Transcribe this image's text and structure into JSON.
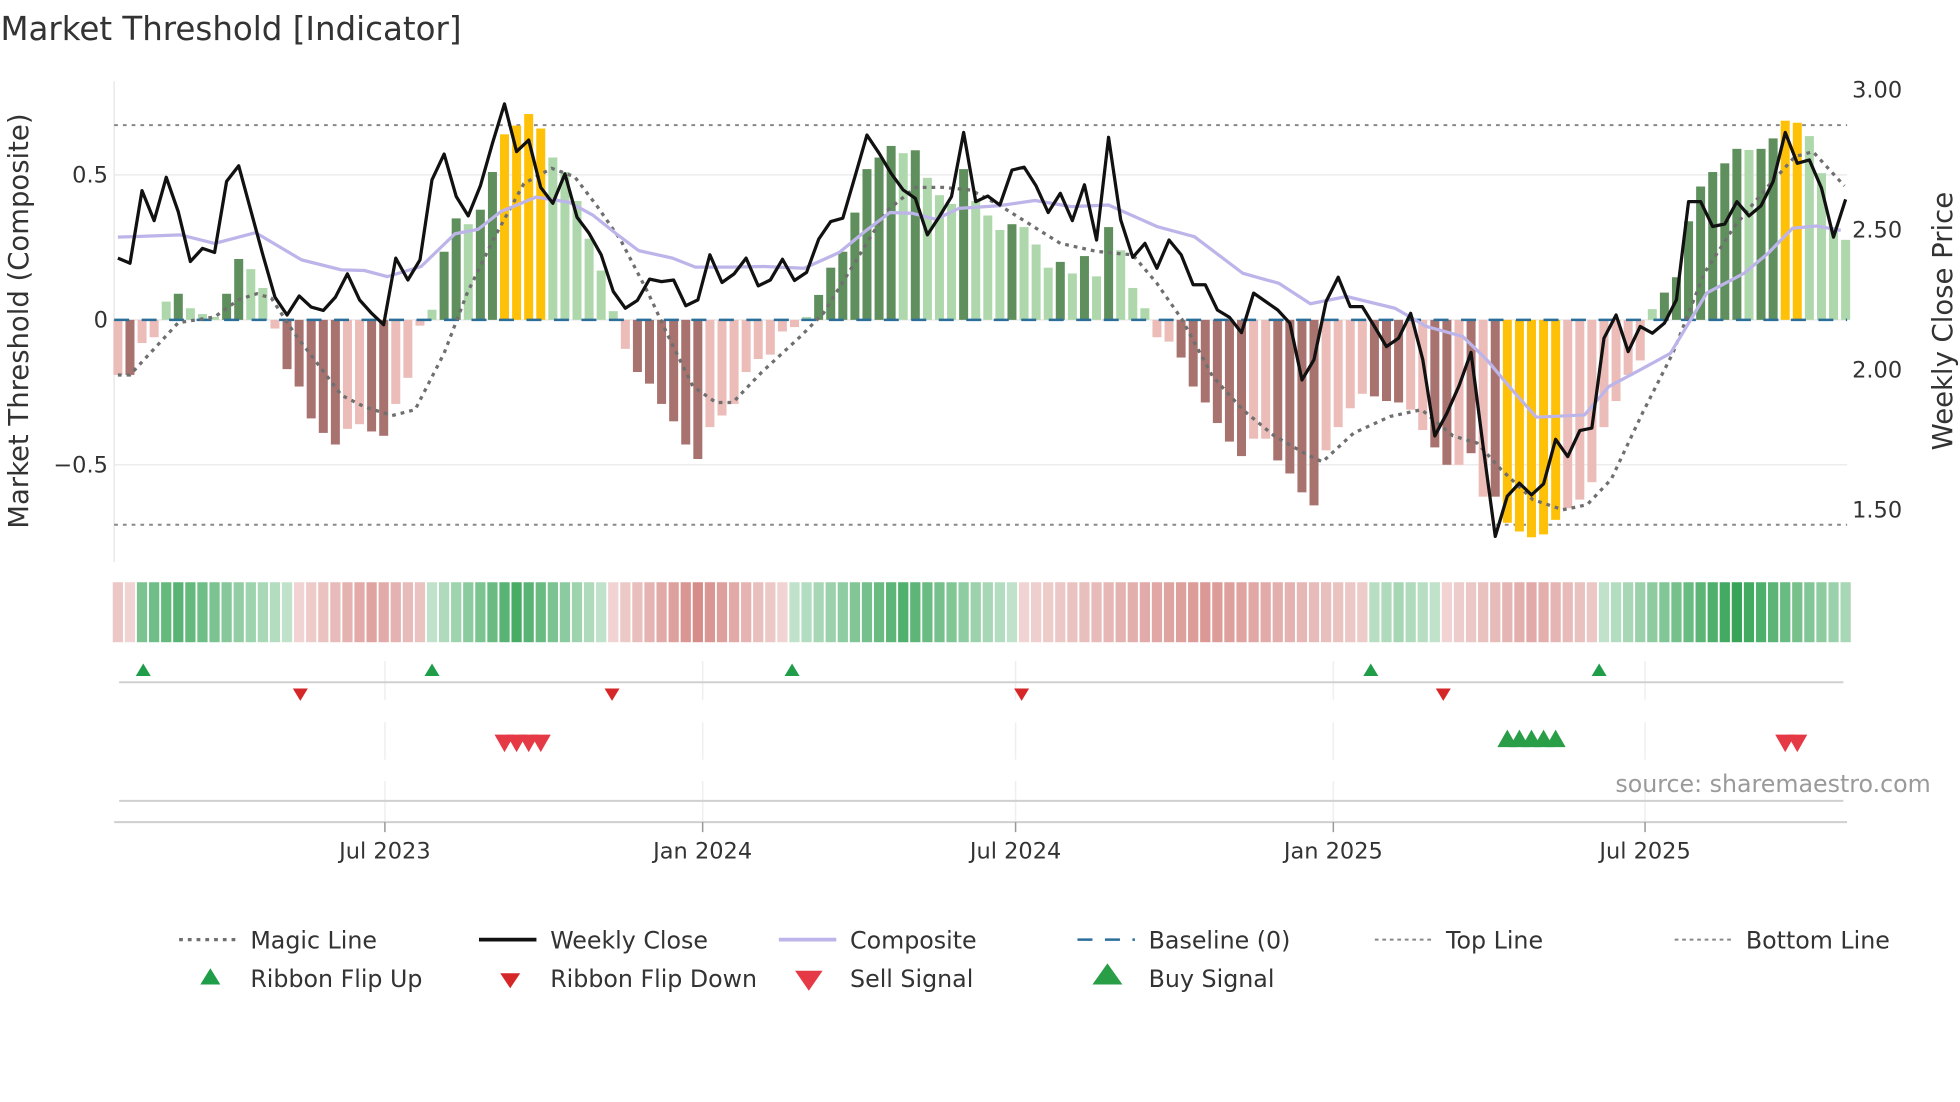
{
  "title": "Market Threshold [Indicator]",
  "source": "source: sharemaestro.com",
  "chart_data": {
    "type": "bar",
    "title": "Market Threshold [Indicator]",
    "xlabel": "",
    "ylabel_left": "Market Threshold (Composite)",
    "ylabel_right": "Weekly Close Price",
    "x_unit": "week index (weekly, ~Feb 2023 to Oct 2025)",
    "ylim_left": [
      -0.82,
      0.82
    ],
    "ylim_right": [
      1.3,
      3.06
    ],
    "yticks_left": [
      {
        "v": 0.5,
        "label": "0.5"
      },
      {
        "v": 0,
        "label": "0"
      },
      {
        "v": -0.5,
        "label": "−0.5"
      }
    ],
    "yticks_right": [
      {
        "v": 3.0,
        "label": "3.00"
      },
      {
        "v": 2.5,
        "label": "2.50"
      },
      {
        "v": 2.0,
        "label": "2.00"
      },
      {
        "v": 1.5,
        "label": "1.50"
      }
    ],
    "xticks": [
      {
        "w": 22.1,
        "label": "Jul 2023"
      },
      {
        "w": 48.4,
        "label": "Jan 2024"
      },
      {
        "w": 74.3,
        "label": "Jul 2024"
      },
      {
        "w": 100.6,
        "label": "Jan 2025"
      },
      {
        "w": 126.4,
        "label": "Jul 2025"
      }
    ],
    "top_line": 0.672,
    "bottom_line": -0.707,
    "baseline": 0,
    "composite_bars": [
      -0.19,
      -0.19,
      -0.08,
      -0.06,
      0.063,
      0.09,
      0.04,
      0.02,
      0.01,
      0.09,
      0.21,
      0.175,
      0.11,
      -0.03,
      -0.17,
      -0.23,
      -0.34,
      -0.39,
      -0.43,
      -0.376,
      -0.36,
      -0.385,
      -0.4,
      -0.29,
      -0.2,
      -0.02,
      0.035,
      0.235,
      0.35,
      0.33,
      0.38,
      0.51,
      0.64,
      0.67,
      0.71,
      0.66,
      0.56,
      0.51,
      0.41,
      0.28,
      0.17,
      0.03,
      -0.1,
      -0.18,
      -0.22,
      -0.29,
      -0.35,
      -0.43,
      -0.48,
      -0.37,
      -0.33,
      -0.29,
      -0.18,
      -0.135,
      -0.12,
      -0.04,
      -0.025,
      0.01,
      0.086,
      0.18,
      0.235,
      0.37,
      0.52,
      0.56,
      0.6,
      0.575,
      0.585,
      0.49,
      0.43,
      0.4,
      0.52,
      0.41,
      0.36,
      0.31,
      0.33,
      0.32,
      0.26,
      0.18,
      0.2,
      0.16,
      0.22,
      0.15,
      0.32,
      0.24,
      0.11,
      0.04,
      -0.06,
      -0.075,
      -0.13,
      -0.23,
      -0.285,
      -0.356,
      -0.42,
      -0.47,
      -0.41,
      -0.41,
      -0.485,
      -0.53,
      -0.595,
      -0.64,
      -0.45,
      -0.37,
      -0.305,
      -0.255,
      -0.264,
      -0.28,
      -0.285,
      -0.31,
      -0.38,
      -0.44,
      -0.5,
      -0.5,
      -0.46,
      -0.61,
      -0.61,
      -0.7,
      -0.73,
      -0.75,
      -0.74,
      -0.69,
      -0.65,
      -0.62,
      -0.56,
      -0.37,
      -0.28,
      -0.19,
      -0.14,
      0.037,
      0.094,
      0.147,
      0.34,
      0.46,
      0.51,
      0.54,
      0.59,
      0.586,
      0.59,
      0.626,
      0.687,
      0.68,
      0.634,
      0.506,
      0.32,
      0.276
    ],
    "bar_strong": [
      0,
      1,
      0,
      0,
      0,
      1,
      0,
      0,
      0,
      1,
      1,
      0,
      0,
      0,
      1,
      1,
      1,
      1,
      1,
      0,
      0,
      1,
      1,
      0,
      0,
      0,
      0,
      1,
      1,
      0,
      1,
      1,
      1,
      1,
      1,
      1,
      0,
      0,
      0,
      0,
      0,
      0,
      0,
      1,
      1,
      1,
      1,
      1,
      1,
      0,
      0,
      0,
      0,
      0,
      0,
      0,
      0,
      0,
      1,
      1,
      1,
      1,
      1,
      1,
      1,
      0,
      1,
      0,
      0,
      0,
      1,
      0,
      0,
      0,
      1,
      0,
      0,
      0,
      1,
      0,
      1,
      0,
      1,
      0,
      0,
      0,
      0,
      0,
      1,
      1,
      1,
      1,
      1,
      1,
      0,
      0,
      1,
      1,
      1,
      1,
      0,
      0,
      0,
      0,
      1,
      1,
      1,
      0,
      0,
      1,
      1,
      0,
      1,
      0,
      1,
      1,
      1,
      1,
      1,
      1,
      0,
      0,
      0,
      0,
      0,
      0,
      0,
      0,
      1,
      1,
      1,
      1,
      1,
      1,
      1,
      0,
      1,
      1,
      1,
      1,
      0,
      0,
      0,
      0
    ],
    "weekly_close": [
      2.399,
      2.381,
      2.64,
      2.533,
      2.688,
      2.565,
      2.387,
      2.434,
      2.419,
      2.673,
      2.729,
      2.569,
      2.411,
      2.26,
      2.196,
      2.264,
      2.224,
      2.212,
      2.26,
      2.343,
      2.25,
      2.202,
      2.161,
      2.399,
      2.321,
      2.393,
      2.679,
      2.771,
      2.619,
      2.55,
      2.657,
      2.81,
      2.95,
      2.78,
      2.821,
      2.652,
      2.595,
      2.7,
      2.545,
      2.488,
      2.411,
      2.28,
      2.22,
      2.248,
      2.324,
      2.315,
      2.321,
      2.229,
      2.25,
      2.411,
      2.312,
      2.343,
      2.399,
      2.3,
      2.321,
      2.395,
      2.319,
      2.348,
      2.467,
      2.53,
      2.542,
      2.69,
      2.839,
      2.774,
      2.702,
      2.643,
      2.613,
      2.482,
      2.548,
      2.619,
      2.848,
      2.601,
      2.621,
      2.589,
      2.714,
      2.724,
      2.657,
      2.562,
      2.631,
      2.533,
      2.661,
      2.464,
      2.831,
      2.536,
      2.402,
      2.452,
      2.363,
      2.464,
      2.411,
      2.304,
      2.304,
      2.214,
      2.188,
      2.133,
      2.274,
      2.244,
      2.214,
      2.167,
      1.964,
      2.036,
      2.244,
      2.331,
      2.226,
      2.226,
      2.155,
      2.083,
      2.113,
      2.202,
      2.036,
      1.764,
      1.845,
      1.943,
      2.062,
      1.726,
      1.405,
      1.548,
      1.595,
      1.553,
      1.593,
      1.752,
      1.69,
      1.783,
      1.792,
      2.113,
      2.196,
      2.065,
      2.155,
      2.131,
      2.167,
      2.25,
      2.601,
      2.601,
      2.512,
      2.521,
      2.601,
      2.55,
      2.586,
      2.673,
      2.848,
      2.738,
      2.75,
      2.649,
      2.474,
      2.609
    ],
    "composite_line": [
      [
        0,
        2.474
      ],
      [
        5.2,
        2.482
      ],
      [
        8,
        2.452
      ],
      [
        11.4,
        2.49
      ],
      [
        15.2,
        2.393
      ],
      [
        18.5,
        2.357
      ],
      [
        20.4,
        2.355
      ],
      [
        22.3,
        2.333
      ],
      [
        25.1,
        2.369
      ],
      [
        27.9,
        2.486
      ],
      [
        29.8,
        2.502
      ],
      [
        31.7,
        2.565
      ],
      [
        34.6,
        2.617
      ],
      [
        37.4,
        2.598
      ],
      [
        39.3,
        2.553
      ],
      [
        41.2,
        2.488
      ],
      [
        43.1,
        2.426
      ],
      [
        45.9,
        2.399
      ],
      [
        47.8,
        2.367
      ],
      [
        50.7,
        2.367
      ],
      [
        53.5,
        2.369
      ],
      [
        56.8,
        2.363
      ],
      [
        59.7,
        2.419
      ],
      [
        62,
        2.5
      ],
      [
        63.9,
        2.562
      ],
      [
        65.8,
        2.559
      ],
      [
        67.7,
        2.538
      ],
      [
        69.6,
        2.577
      ],
      [
        72.9,
        2.586
      ],
      [
        75.9,
        2.605
      ],
      [
        78.9,
        2.583
      ],
      [
        82,
        2.589
      ],
      [
        86,
        2.512
      ],
      [
        89.1,
        2.476
      ],
      [
        93.1,
        2.345
      ],
      [
        96.1,
        2.309
      ],
      [
        98.7,
        2.236
      ],
      [
        101.7,
        2.262
      ],
      [
        105.7,
        2.22
      ],
      [
        108.3,
        2.155
      ],
      [
        111.3,
        2.119
      ],
      [
        113.3,
        2.036
      ],
      [
        115.4,
        1.928
      ],
      [
        117.4,
        1.831
      ],
      [
        121.4,
        1.839
      ],
      [
        123.4,
        1.94
      ],
      [
        126,
        2.0
      ],
      [
        128.5,
        2.059
      ],
      [
        131.5,
        2.274
      ],
      [
        134.6,
        2.345
      ],
      [
        136.6,
        2.417
      ],
      [
        138.6,
        2.506
      ],
      [
        140.6,
        2.514
      ],
      [
        142.6,
        2.498
      ]
    ],
    "magic_line": [
      [
        0,
        -0.19
      ],
      [
        1,
        -0.19
      ],
      [
        3,
        -0.1
      ],
      [
        5,
        -0.01
      ],
      [
        8,
        0.01
      ],
      [
        10,
        0.07
      ],
      [
        11.5,
        0.09
      ],
      [
        12.7,
        0.075
      ],
      [
        14.6,
        -0.046
      ],
      [
        16.5,
        -0.15
      ],
      [
        18.5,
        -0.26
      ],
      [
        20.4,
        -0.3
      ],
      [
        22.7,
        -0.33
      ],
      [
        24.6,
        -0.31
      ],
      [
        27,
        -0.115
      ],
      [
        28.9,
        0.092
      ],
      [
        31.2,
        0.287
      ],
      [
        33.6,
        0.47
      ],
      [
        35.9,
        0.523
      ],
      [
        37.8,
        0.494
      ],
      [
        39.7,
        0.39
      ],
      [
        41.6,
        0.276
      ],
      [
        43.9,
        0.092
      ],
      [
        45.7,
        -0.069
      ],
      [
        47.6,
        -0.23
      ],
      [
        49.5,
        -0.285
      ],
      [
        50.9,
        -0.285
      ],
      [
        53.3,
        -0.18
      ],
      [
        56.5,
        -0.057
      ],
      [
        58.4,
        0.023
      ],
      [
        60.8,
        0.184
      ],
      [
        63.6,
        0.374
      ],
      [
        66,
        0.457
      ],
      [
        68.3,
        0.457
      ],
      [
        70.6,
        0.448
      ],
      [
        72.9,
        0.397
      ],
      [
        74.9,
        0.345
      ],
      [
        78,
        0.264
      ],
      [
        81,
        0.236
      ],
      [
        84,
        0.224
      ],
      [
        86,
        0.126
      ],
      [
        88.1,
        0.0
      ],
      [
        90.6,
        -0.195
      ],
      [
        93.1,
        -0.31
      ],
      [
        95.7,
        -0.4
      ],
      [
        98.2,
        -0.46
      ],
      [
        99.7,
        -0.49
      ],
      [
        102.3,
        -0.39
      ],
      [
        105.3,
        -0.333
      ],
      [
        107.9,
        -0.31
      ],
      [
        110.5,
        -0.4
      ],
      [
        112.5,
        -0.425
      ],
      [
        114.5,
        -0.517
      ],
      [
        117.1,
        -0.62
      ],
      [
        119.6,
        -0.655
      ],
      [
        121.6,
        -0.638
      ],
      [
        123.6,
        -0.55
      ],
      [
        126.2,
        -0.32
      ],
      [
        128.7,
        -0.115
      ],
      [
        131.3,
        0.161
      ],
      [
        133.8,
        0.322
      ],
      [
        136.3,
        0.448
      ],
      [
        138.8,
        0.563
      ],
      [
        140.3,
        0.58
      ],
      [
        142.9,
        0.462
      ]
    ],
    "ribbon_segments": [
      {
        "from": 0,
        "to": 1,
        "dir": -1,
        "peak": 0,
        "strength": 0.25
      },
      {
        "from": 2,
        "to": 14,
        "dir": 1,
        "peak": 5,
        "strength": 0.75
      },
      {
        "from": 15,
        "to": 25,
        "dir": -1,
        "peak": 21,
        "strength": 0.55
      },
      {
        "from": 26,
        "to": 40,
        "dir": 1,
        "peak": 33,
        "strength": 0.85
      },
      {
        "from": 41,
        "to": 55,
        "dir": -1,
        "peak": 48,
        "strength": 0.75
      },
      {
        "from": 56,
        "to": 74,
        "dir": 1,
        "peak": 65,
        "strength": 0.8
      },
      {
        "from": 75,
        "to": 103,
        "dir": -1,
        "peak": 90,
        "strength": 0.65
      },
      {
        "from": 104,
        "to": 109,
        "dir": 1,
        "peak": 106,
        "strength": 0.3
      },
      {
        "from": 110,
        "to": 122,
        "dir": -1,
        "peak": 117,
        "strength": 0.5
      },
      {
        "from": 123,
        "to": 143,
        "dir": 1,
        "peak": 134,
        "strength": 0.95
      }
    ],
    "ribbon_flip_up": [
      2.1,
      26,
      55.8,
      103.7,
      122.6
    ],
    "ribbon_flip_down": [
      15.1,
      40.9,
      74.8,
      109.7
    ],
    "sell_signals": [
      32,
      33,
      34,
      35,
      138,
      139
    ],
    "buy_signals": [
      115,
      116,
      117,
      118,
      119
    ],
    "legend_placement": "bottom",
    "legend": [
      {
        "label": "Magic Line",
        "kind": "magic"
      },
      {
        "label": "Weekly Close",
        "kind": "close"
      },
      {
        "label": "Composite",
        "kind": "composite"
      },
      {
        "label": "Baseline (0)",
        "kind": "baseline"
      },
      {
        "label": "Top Line",
        "kind": "topline"
      },
      {
        "label": "Bottom Line",
        "kind": "bottomline"
      },
      {
        "label": "Ribbon Flip Up",
        "kind": "flipup"
      },
      {
        "label": "Ribbon Flip Down",
        "kind": "flipdown"
      },
      {
        "label": "Sell Signal",
        "kind": "sell"
      },
      {
        "label": "Buy Signal",
        "kind": "buy"
      }
    ]
  },
  "colors": {
    "pos_strong": "#5e8f5c",
    "pos_weak": "#aed8ab",
    "neg_strong": "#a8726e",
    "neg_weak": "#ebbcb8",
    "signal_bar": "#ffc107",
    "close": "#111111",
    "composite": "#bdb5ea",
    "magic": "#6f6f6f",
    "baseline": "#2b6e99",
    "threshold": "#888888",
    "flip_up": "#1f9d48",
    "flip_down": "#d62728",
    "sell": "#e63946",
    "buy": "#2a9d47",
    "ribbon_green": "#2ea050",
    "ribbon_red": "#cc6e69"
  }
}
